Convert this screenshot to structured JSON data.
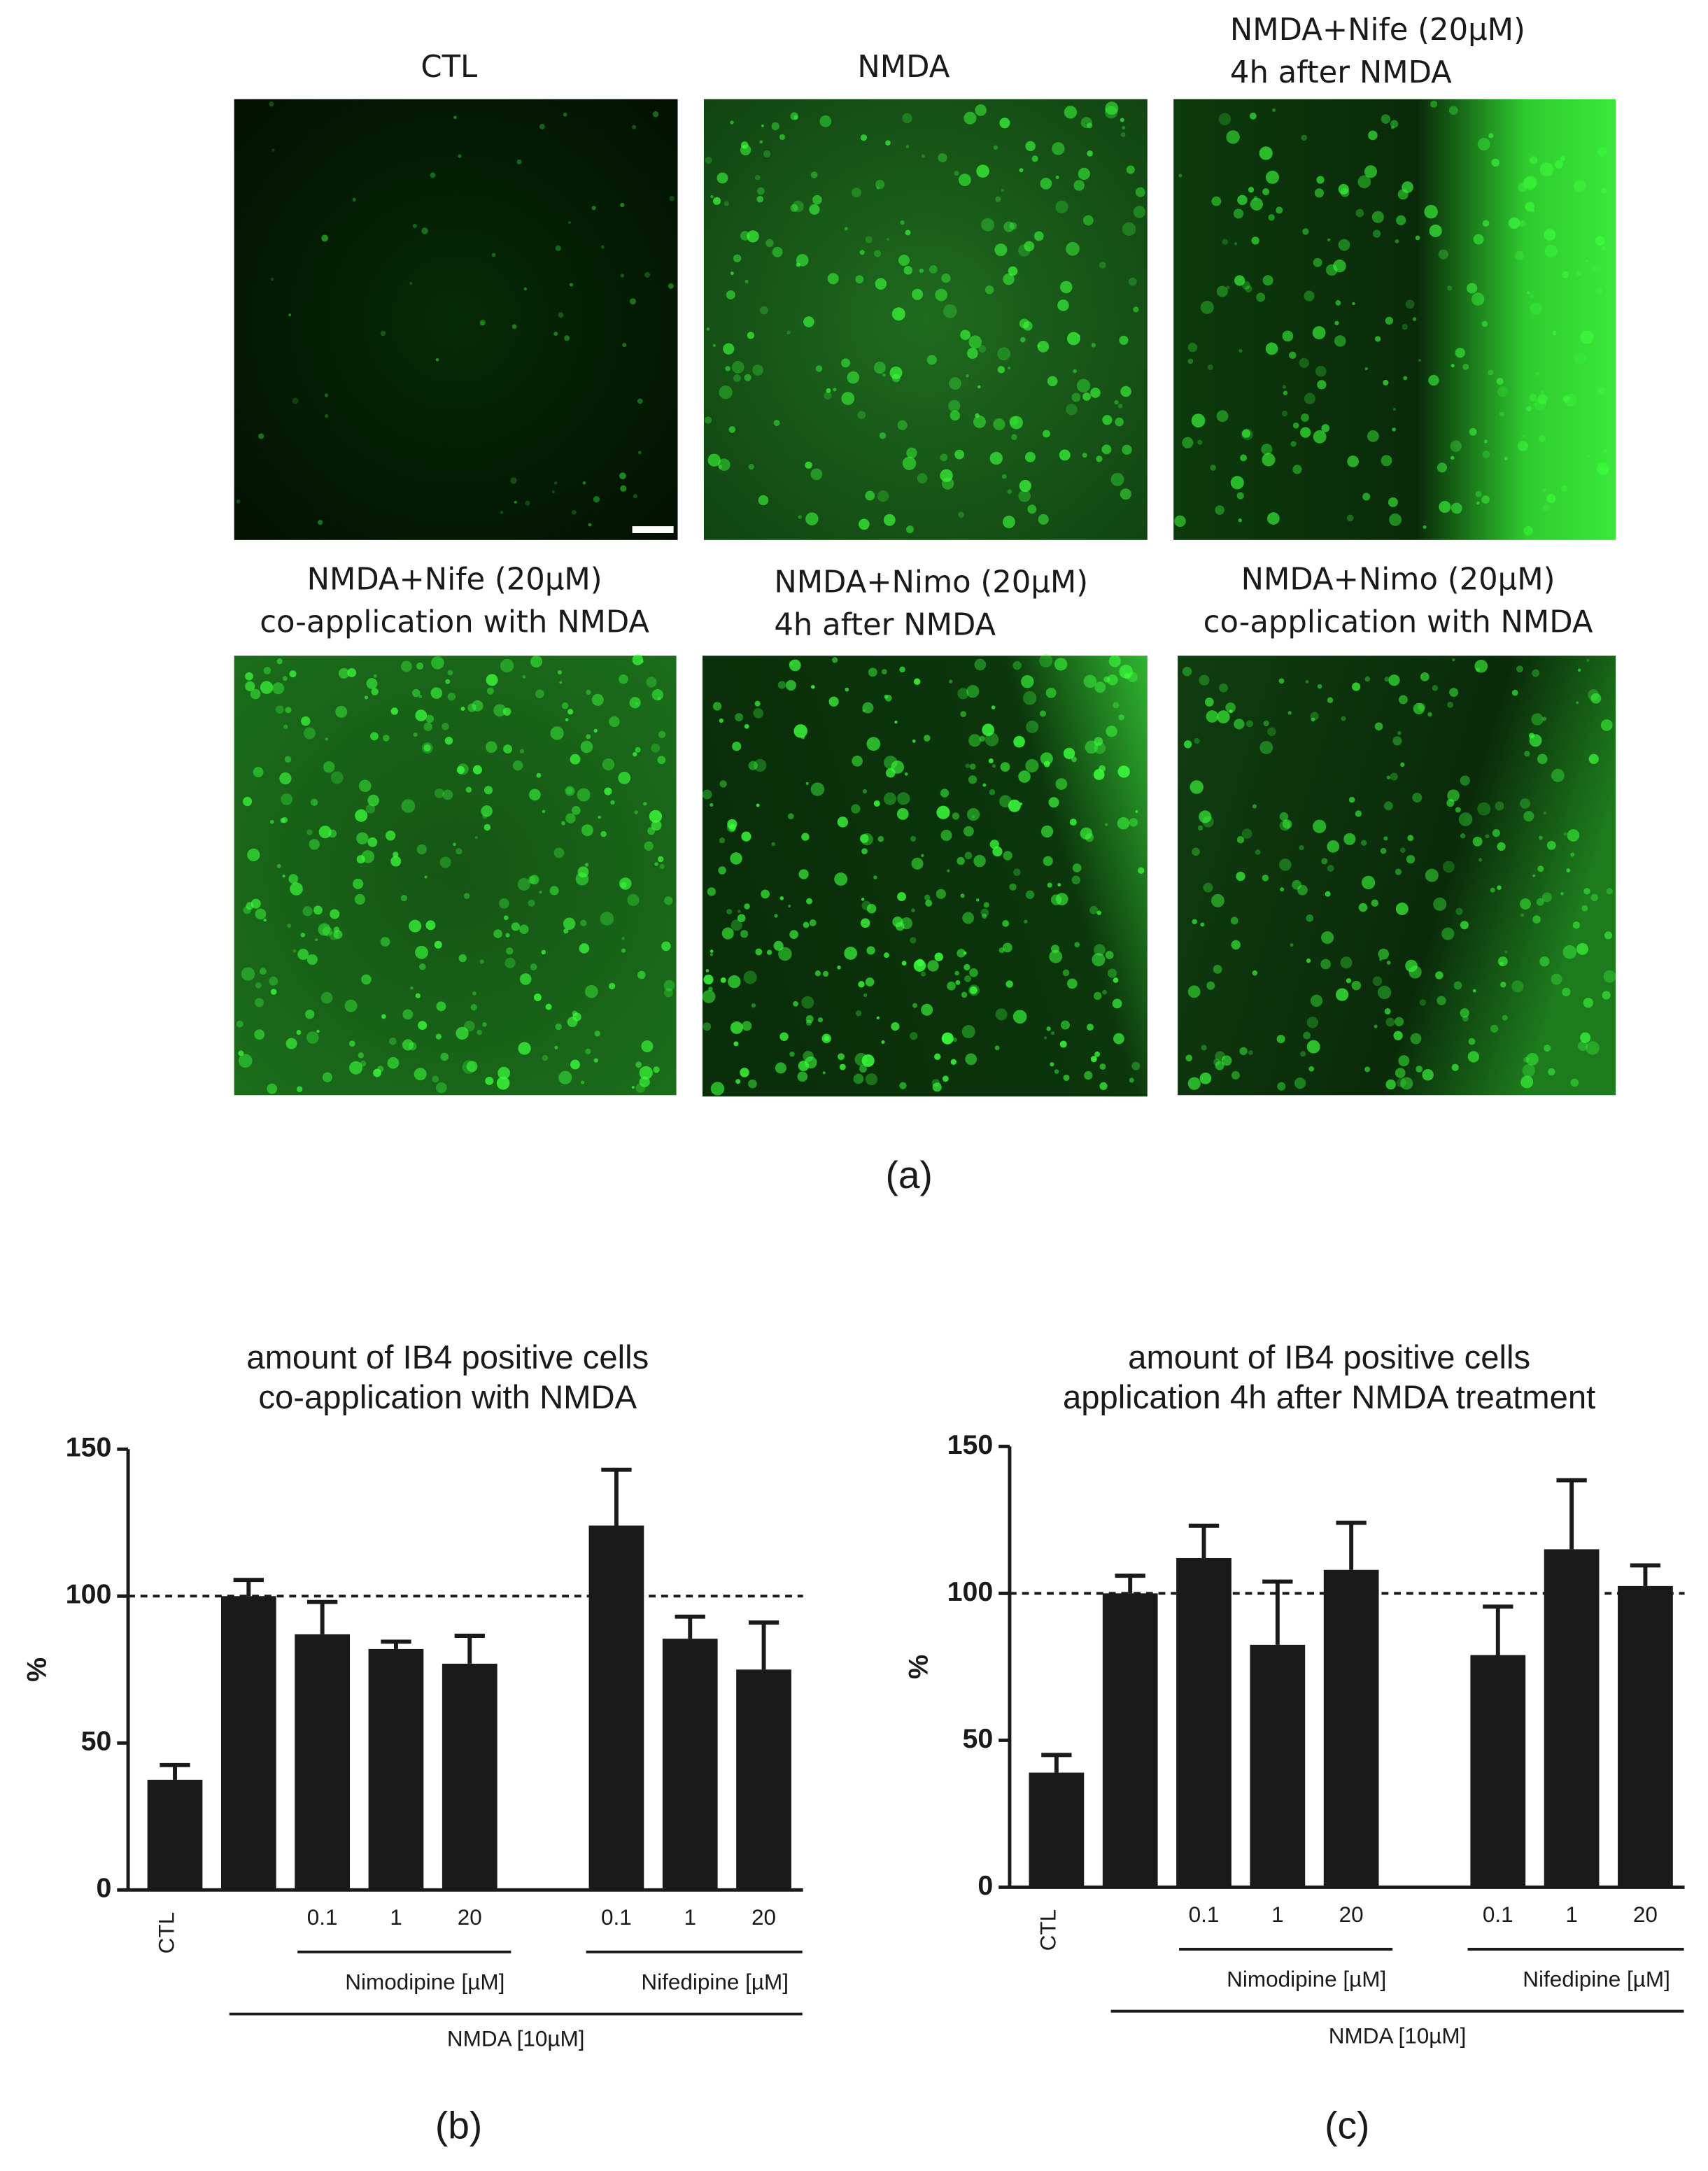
{
  "panel_a": {
    "images": [
      {
        "title": [
          "CTL"
        ]
      },
      {
        "title": [
          "NMDA"
        ]
      },
      {
        "title": [
          "NMDA+Nife (20µM)",
          "4h after NMDA"
        ]
      },
      {
        "title": [
          "NMDA+Nife (20µM)",
          "co-application with NMDA"
        ]
      },
      {
        "title": [
          "NMDA+Nimo (20µM)",
          "4h after NMDA"
        ]
      },
      {
        "title": [
          "NMDA+Nimo (20µM)",
          "co-application with NMDA"
        ]
      }
    ],
    "label": "(a)"
  },
  "chart_data": [
    {
      "type": "bar",
      "title": [
        "amount of IB4 positive cells",
        "co-application with NMDA"
      ],
      "y_label": "%",
      "categories": [
        "CTL",
        null,
        "0.1",
        "1",
        "20",
        "0.1",
        "1",
        "20"
      ],
      "values": [
        37.5,
        100,
        87,
        82,
        77,
        124,
        85.5,
        75
      ],
      "errors": [
        5,
        5.5,
        11,
        2.5,
        9.5,
        19,
        7.5,
        16
      ],
      "color": "#1a1a1a",
      "ylim": [
        0,
        150
      ],
      "yticks": [
        0,
        50,
        100,
        150
      ],
      "reference_line": 100,
      "group_labels": [
        "Nimodipine [µM]",
        "Nifedipine [µM]",
        "NMDA [10µM]"
      ],
      "panel_label": "(b)"
    },
    {
      "type": "bar",
      "title": [
        "amount of IB4 positive cells",
        "application 4h after NMDA treatment"
      ],
      "y_label": "%",
      "categories": [
        "CTL",
        null,
        "0.1",
        "1",
        "20",
        "0.1",
        "1",
        "20"
      ],
      "values": [
        39,
        100,
        112,
        82.5,
        108,
        79,
        115,
        102.5
      ],
      "errors": [
        6,
        6,
        11,
        21.5,
        16,
        16.5,
        23.5,
        7
      ],
      "color": "#1a1a1a",
      "ylim": [
        0,
        150
      ],
      "yticks": [
        0,
        50,
        100,
        150
      ],
      "reference_line": 100,
      "group_labels": [
        "Nimodipine [µM]",
        "Nifedipine [µM]",
        "NMDA [10µM]"
      ],
      "panel_label": "(c)"
    }
  ]
}
